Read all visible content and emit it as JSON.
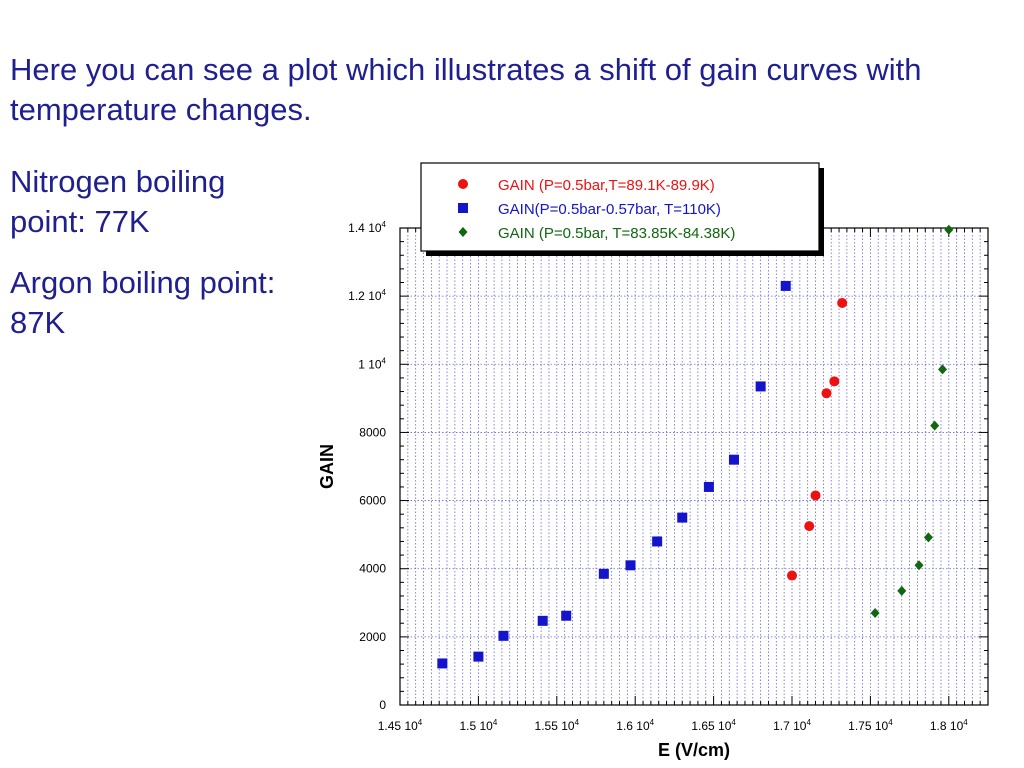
{
  "slide": {
    "heading": "Here you can see a plot which illustrates a shift of gain curves with temperature changes.",
    "notes": [
      "Nitrogen boiling point: 77K",
      "Argon boiling point: 87K"
    ]
  },
  "chart_data": {
    "type": "scatter",
    "xlabel": "E (V/cm)",
    "ylabel": "GAIN",
    "xlim": [
      14500,
      18250
    ],
    "ylim": [
      0,
      14000
    ],
    "grid": true,
    "legend_position": "top",
    "x_ticks": [
      {
        "value": 14500,
        "base": "1.45 10",
        "exp": "4"
      },
      {
        "value": 15000,
        "base": "1.5 10",
        "exp": "4"
      },
      {
        "value": 15500,
        "base": "1.55 10",
        "exp": "4"
      },
      {
        "value": 16000,
        "base": "1.6 10",
        "exp": "4"
      },
      {
        "value": 16500,
        "base": "1.65 10",
        "exp": "4"
      },
      {
        "value": 17000,
        "base": "1.7 10",
        "exp": "4"
      },
      {
        "value": 17500,
        "base": "1.75 10",
        "exp": "4"
      },
      {
        "value": 18000,
        "base": "1.8 10",
        "exp": "4"
      }
    ],
    "y_ticks": [
      {
        "value": 0,
        "base": "0",
        "exp": ""
      },
      {
        "value": 2000,
        "base": "2000",
        "exp": ""
      },
      {
        "value": 4000,
        "base": "4000",
        "exp": ""
      },
      {
        "value": 6000,
        "base": "6000",
        "exp": ""
      },
      {
        "value": 8000,
        "base": "8000",
        "exp": ""
      },
      {
        "value": 10000,
        "base": "1 10",
        "exp": "4"
      },
      {
        "value": 12000,
        "base": "1.2 10",
        "exp": "4"
      },
      {
        "value": 14000,
        "base": "1.4 10",
        "exp": "4"
      }
    ],
    "series": [
      {
        "name": "GAIN (P=0.5bar,T=89.1K-89.9K)",
        "color": "#ee1111",
        "marker": "circle",
        "points": [
          [
            17000,
            3800
          ],
          [
            17110,
            5250
          ],
          [
            17150,
            6150
          ],
          [
            17220,
            9150
          ],
          [
            17270,
            9500
          ],
          [
            17320,
            11800
          ]
        ]
      },
      {
        "name": "GAIN(P=0.5bar-0.57bar, T=110K)",
        "color": "#1414cc",
        "marker": "square",
        "points": [
          [
            14770,
            1220
          ],
          [
            15000,
            1420
          ],
          [
            15160,
            2030
          ],
          [
            15410,
            2470
          ],
          [
            15560,
            2620
          ],
          [
            15800,
            3850
          ],
          [
            15970,
            4100
          ],
          [
            16140,
            4800
          ],
          [
            16300,
            5500
          ],
          [
            16470,
            6400
          ],
          [
            16630,
            7200
          ],
          [
            16800,
            9350
          ],
          [
            16960,
            12300
          ]
        ]
      },
      {
        "name": "GAIN (P=0.5bar, T=83.85K-84.38K)",
        "color": "#116611",
        "marker": "diamond",
        "points": [
          [
            17530,
            2700
          ],
          [
            17700,
            3350
          ],
          [
            17810,
            4100
          ],
          [
            17870,
            4920
          ],
          [
            17910,
            8200
          ],
          [
            17960,
            9850
          ],
          [
            18000,
            13950
          ]
        ]
      }
    ]
  }
}
